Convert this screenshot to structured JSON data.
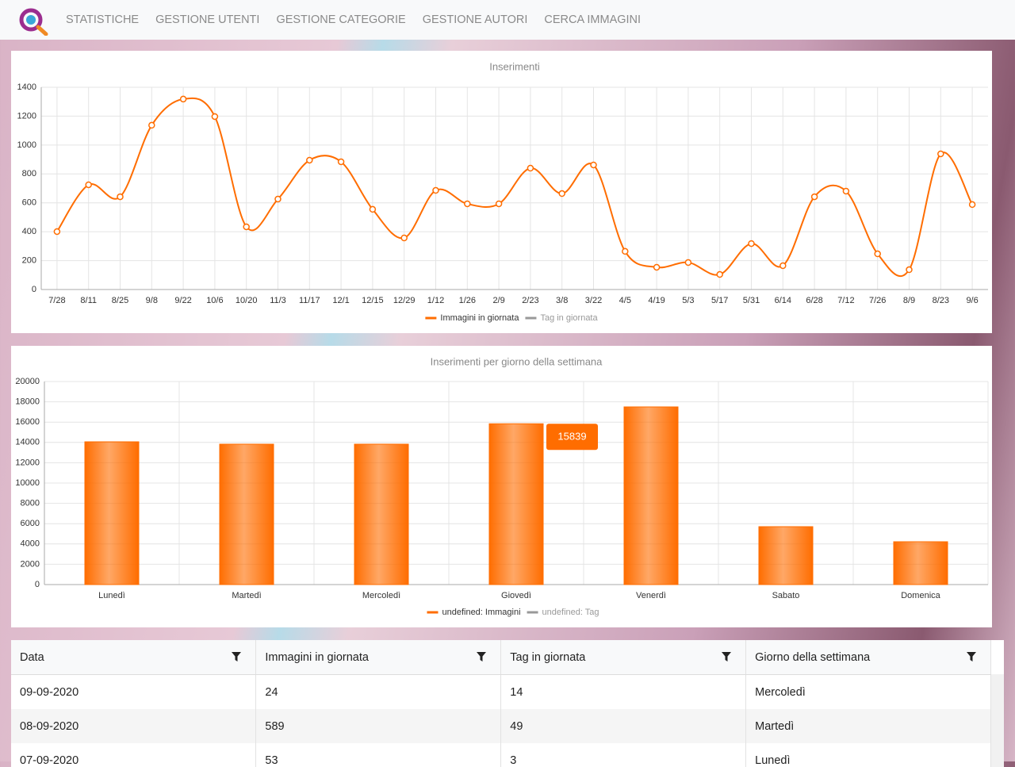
{
  "nav": {
    "items": [
      "STATISTICHE",
      "GESTIONE UTENTI",
      "GESTIONE CATEGORIE",
      "GESTIONE AUTORI",
      "CERCA IMMAGINI"
    ]
  },
  "chart_data": [
    {
      "type": "line",
      "title": "Inserimenti",
      "categories": [
        "7/28",
        "8/11",
        "8/25",
        "9/8",
        "9/22",
        "10/6",
        "10/20",
        "11/3",
        "11/17",
        "12/1",
        "12/15",
        "12/29",
        "1/12",
        "1/26",
        "2/9",
        "2/23",
        "3/8",
        "3/22",
        "4/5",
        "4/19",
        "5/3",
        "5/17",
        "5/31",
        "6/14",
        "6/28",
        "7/12",
        "7/26",
        "8/9",
        "8/23",
        "9/6"
      ],
      "series": [
        {
          "name": "Immagini in giornata",
          "color": "#ff6d00",
          "values": [
            401,
            725,
            642,
            1137,
            1318,
            1197,
            434,
            626,
            895,
            884,
            555,
            357,
            686,
            593,
            593,
            840,
            664,
            862,
            264,
            154,
            187,
            104,
            318,
            165,
            642,
            681,
            247,
            137,
            939,
            588
          ]
        },
        {
          "name": "Tag in giornata",
          "color": "#999999",
          "values": [
            null,
            null,
            null,
            null,
            null,
            null,
            null,
            null,
            null,
            null,
            null,
            null,
            null,
            null,
            null,
            null,
            null,
            null,
            null,
            null,
            null,
            null,
            null,
            null,
            null,
            null,
            null,
            null,
            null,
            null
          ]
        }
      ],
      "ylim": [
        0,
        1400
      ],
      "yticks": [
        0,
        200,
        400,
        600,
        800,
        1000,
        1200,
        1400
      ],
      "grid": true
    },
    {
      "type": "bar",
      "title": "Inserimenti per giorno della settimana",
      "categories": [
        "Lunedì",
        "Martedì",
        "Mercoledì",
        "Giovedì",
        "Venerdì",
        "Sabato",
        "Domenica"
      ],
      "series": [
        {
          "name": "undefined: Immagini",
          "color": "#ff6d00",
          "values": [
            14062,
            13828,
            13828,
            15839,
            17500,
            5703,
            4219
          ]
        },
        {
          "name": "undefined: Tag",
          "color": "#999999",
          "values": [
            null,
            null,
            null,
            null,
            null,
            null,
            null
          ]
        }
      ],
      "value_labels": {
        "3": "15839"
      },
      "ylim": [
        0,
        20000
      ],
      "yticks": [
        0,
        2000,
        4000,
        6000,
        8000,
        10000,
        12000,
        14000,
        16000,
        18000,
        20000
      ],
      "grid": true
    }
  ],
  "table": {
    "headers": [
      "Data",
      "Immagini in giornata",
      "Tag in giornata",
      "Giorno della settimana"
    ],
    "rows": [
      [
        "09-09-2020",
        "24",
        "14",
        "Mercoledì"
      ],
      [
        "08-09-2020",
        "589",
        "49",
        "Martedì"
      ],
      [
        "07-09-2020",
        "53",
        "3",
        "Lunedì"
      ]
    ]
  }
}
